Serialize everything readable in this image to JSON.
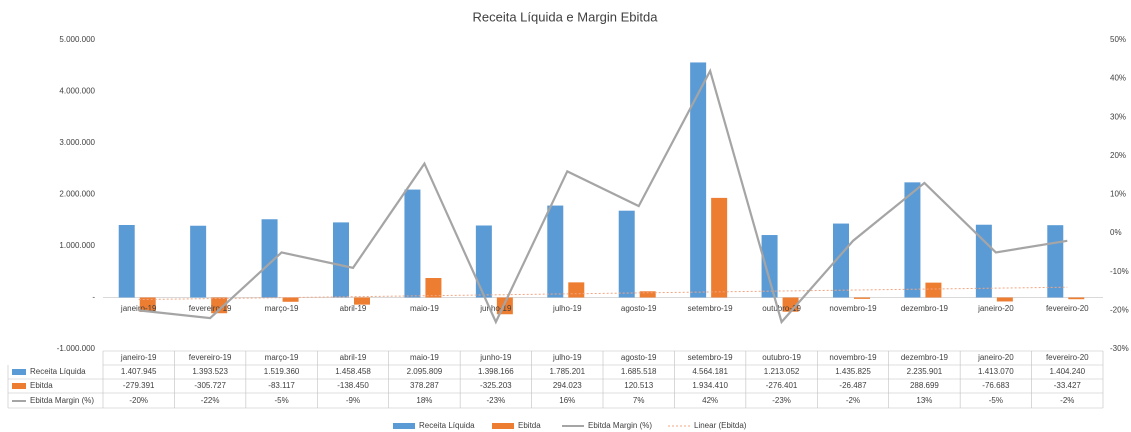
{
  "chart_data": {
    "type": "bar",
    "title": "Receita Líquida e Margin Ebitda",
    "categories": [
      "janeiro-19",
      "fevereiro-19",
      "março-19",
      "abril-19",
      "maio-19",
      "junho-19",
      "julho-19",
      "agosto-19",
      "setembro-19",
      "outubro-19",
      "novembro-19",
      "dezembro-19",
      "janeiro-20",
      "fevereiro-20"
    ],
    "series": [
      {
        "name": "Receita Líquida",
        "type": "bar",
        "color": "#5b9bd5",
        "values": [
          1407945,
          1393523,
          1519360,
          1458458,
          2095809,
          1398166,
          1785201,
          1685518,
          4564181,
          1213052,
          1435825,
          2235901,
          1413070,
          1404240
        ],
        "value_labels": [
          "1.407.945",
          "1.393.523",
          "1.519.360",
          "1.458.458",
          "2.095.809",
          "1.398.166",
          "1.785.201",
          "1.685.518",
          "4.564.181",
          "1.213.052",
          "1.435.825",
          "2.235.901",
          "1.413.070",
          "1.404.240"
        ]
      },
      {
        "name": "Ebitda",
        "type": "bar",
        "color": "#ed7d31",
        "values": [
          -279391,
          -305727,
          -83117,
          -138450,
          378287,
          -325203,
          294023,
          120513,
          1934410,
          -276401,
          -26487,
          288699,
          -76683,
          -33427
        ],
        "value_labels": [
          "-279.391",
          "-305.727",
          "-83.117",
          "-138.450",
          "378.287",
          "-325.203",
          "294.023",
          "120.513",
          "1.934.410",
          "-276.401",
          "-26.487",
          "288.699",
          "-76.683",
          "-33.427"
        ]
      },
      {
        "name": "Ebitda Margin (%)",
        "type": "line",
        "axis": "y2",
        "color": "#a5a5a5",
        "values": [
          -20,
          -22,
          -5,
          -9,
          18,
          -23,
          16,
          7,
          42,
          -23,
          -2,
          13,
          -5,
          -2
        ],
        "value_labels": [
          "-20%",
          "-22%",
          "-5%",
          "-9%",
          "18%",
          "-23%",
          "16%",
          "7%",
          "42%",
          "-23%",
          "-2%",
          "13%",
          "-5%",
          "-2%"
        ]
      }
    ],
    "trendline": {
      "name": "Linear (Ebitda)",
      "color": "#f4a582",
      "values": [
        -40000,
        200000
      ]
    },
    "ylim": [
      -1000000,
      5000000
    ],
    "yticks": [
      {
        "value": -1000000,
        "label": "-1.000.000"
      },
      {
        "value": 0,
        "label": "-"
      },
      {
        "value": 1000000,
        "label": "1.000.000"
      },
      {
        "value": 2000000,
        "label": "2.000.000"
      },
      {
        "value": 3000000,
        "label": "3.000.000"
      },
      {
        "value": 4000000,
        "label": "4.000.000"
      },
      {
        "value": 5000000,
        "label": "5.000.000"
      }
    ],
    "y2lim": [
      -30,
      50
    ],
    "y2ticks": [
      {
        "value": -30,
        "label": "-30%"
      },
      {
        "value": -20,
        "label": "-20%"
      },
      {
        "value": -10,
        "label": "-10%"
      },
      {
        "value": 0,
        "label": "0%"
      },
      {
        "value": 10,
        "label": "10%"
      },
      {
        "value": 20,
        "label": "20%"
      },
      {
        "value": 30,
        "label": "30%"
      },
      {
        "value": 40,
        "label": "40%"
      },
      {
        "value": 50,
        "label": "50%"
      }
    ]
  }
}
